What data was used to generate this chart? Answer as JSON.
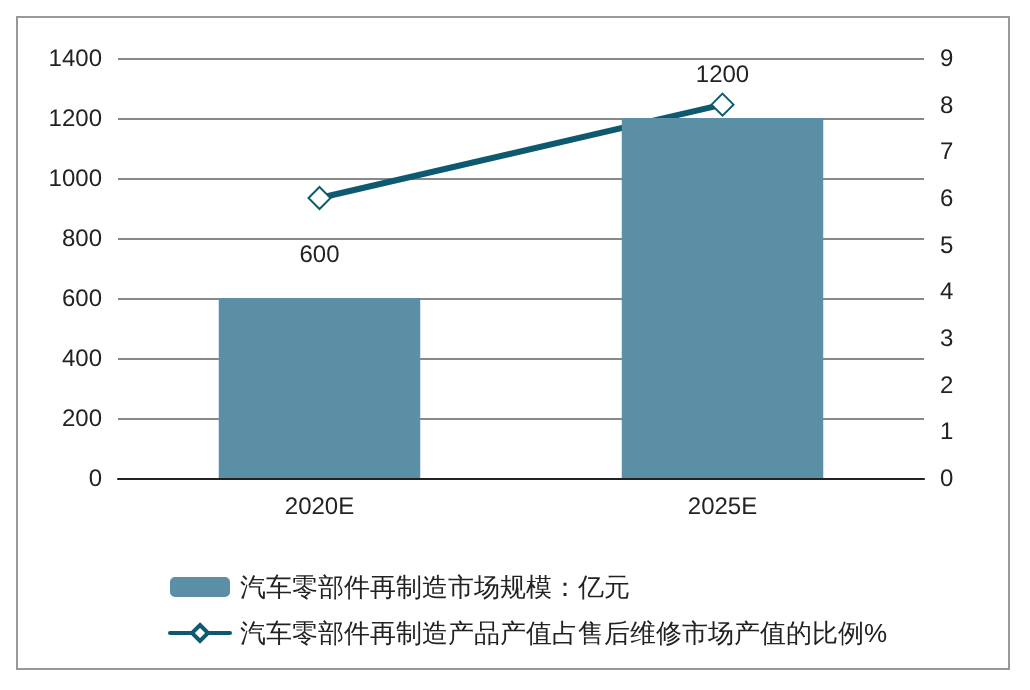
{
  "chart_data": {
    "type": "bar",
    "categories": [
      "2020E",
      "2025E"
    ],
    "series": [
      {
        "name": "汽车零部件再制造市场规模：亿元",
        "color": "#5b8fa6",
        "values": [
          600,
          1200
        ],
        "value_labels": [
          "600",
          "1200"
        ]
      },
      {
        "name": "汽车零部件再制造产品产值占售后维修市场产值的比例%",
        "type": "line",
        "axis": "y2",
        "color": "#0d5a70",
        "values": [
          6,
          8
        ],
        "marker": "diamond"
      }
    ],
    "ylim": [
      0,
      1400
    ],
    "yticks": [
      0,
      200,
      400,
      600,
      800,
      1000,
      1200,
      1400
    ],
    "y2lim": [
      0,
      9
    ],
    "y2ticks": [
      0,
      1,
      2,
      3,
      4,
      5,
      6,
      7,
      8,
      9
    ],
    "grid": "y",
    "legend": "bottom"
  }
}
